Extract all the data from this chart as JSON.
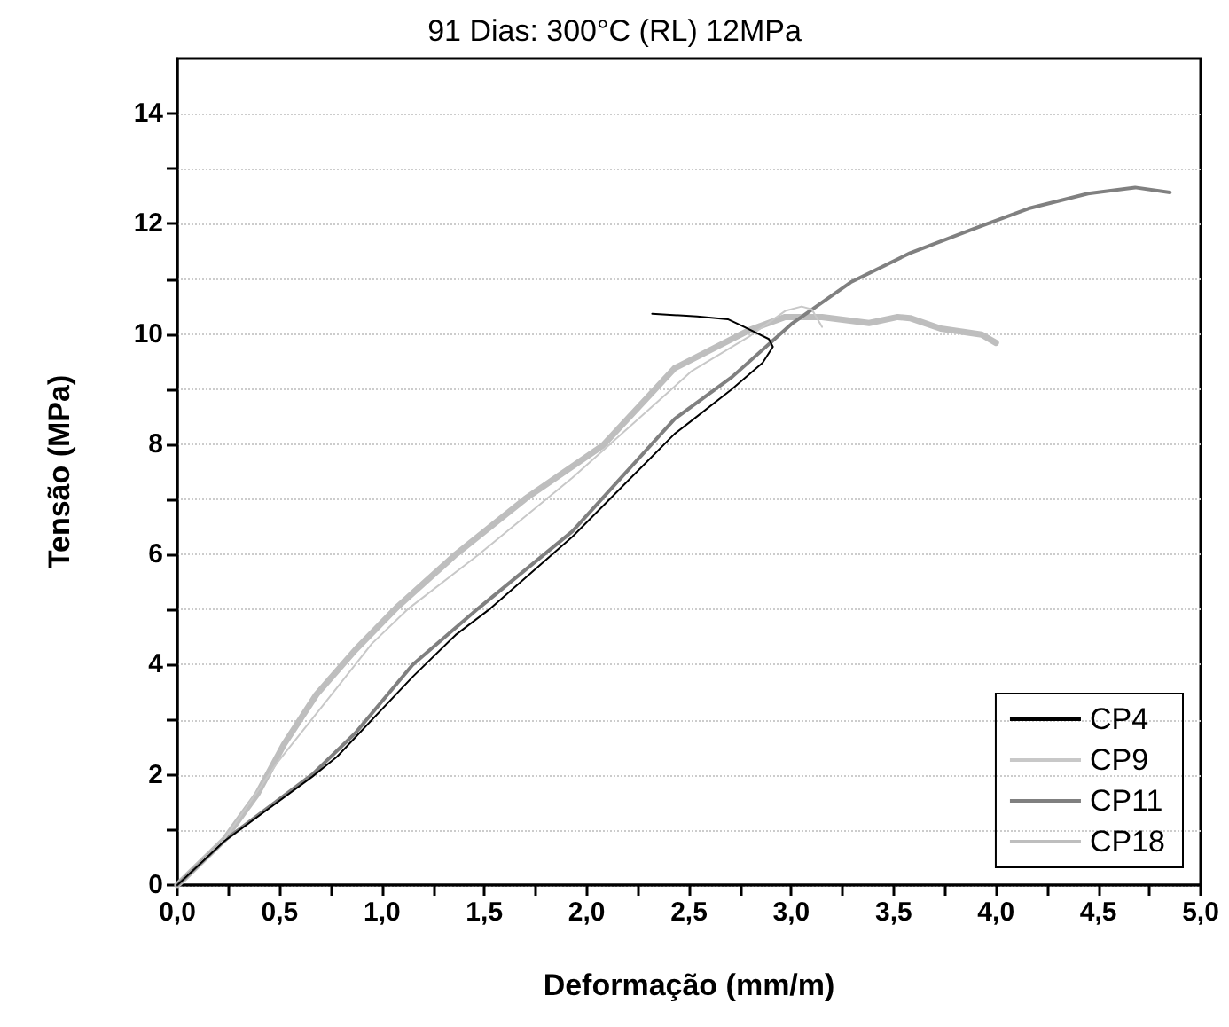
{
  "chart_data": {
    "type": "line",
    "title": "91 Dias: 300°C (RL) 12MPa",
    "xlabel": "Deformação (mm/m)",
    "ylabel": "Tensão (MPa)",
    "xlim": [
      0,
      5
    ],
    "ylim": [
      0,
      15
    ],
    "xticks": [
      {
        "value": 0,
        "label": "0,0"
      },
      {
        "value": 0.25,
        "label": null
      },
      {
        "value": 0.5,
        "label": "0,5"
      },
      {
        "value": 0.75,
        "label": null
      },
      {
        "value": 1,
        "label": "1,0"
      },
      {
        "value": 1.25,
        "label": null
      },
      {
        "value": 1.5,
        "label": "1,5"
      },
      {
        "value": 1.75,
        "label": null
      },
      {
        "value": 2,
        "label": "2,0"
      },
      {
        "value": 2.25,
        "label": null
      },
      {
        "value": 2.5,
        "label": "2,5"
      },
      {
        "value": 2.75,
        "label": null
      },
      {
        "value": 3,
        "label": "3,0"
      },
      {
        "value": 3.25,
        "label": null
      },
      {
        "value": 3.5,
        "label": "3,5"
      },
      {
        "value": 3.75,
        "label": null
      },
      {
        "value": 4,
        "label": "4,0"
      },
      {
        "value": 4.25,
        "label": null
      },
      {
        "value": 4.5,
        "label": "4,5"
      },
      {
        "value": 4.75,
        "label": null
      },
      {
        "value": 5,
        "label": "5,0"
      }
    ],
    "yticks": [
      0,
      {
        "value": 1,
        "label": null
      },
      2,
      {
        "value": 3,
        "label": null
      },
      4,
      {
        "value": 5,
        "label": null
      },
      6,
      {
        "value": 7,
        "label": null
      },
      8,
      {
        "value": 9,
        "label": null
      },
      10,
      {
        "value": 11,
        "label": null
      },
      12,
      {
        "value": 13,
        "label": null
      },
      14
    ],
    "grid": "y",
    "legend": "bottom right",
    "marker": "none",
    "line_style": "solid",
    "series": [
      {
        "name": "CP4",
        "color": "#000000",
        "x": [
          0,
          0.23,
          0.66,
          0.78,
          1.15,
          1.36,
          1.53,
          1.93,
          2.43,
          2.51,
          2.71,
          2.86,
          2.91,
          2.89,
          2.77,
          2.69,
          2.54,
          2.32
        ],
        "values": [
          0,
          0.8,
          1.97,
          2.33,
          3.78,
          4.54,
          5.02,
          6.32,
          8.19,
          8.42,
          9.0,
          9.48,
          9.77,
          9.91,
          10.13,
          10.27,
          10.32,
          10.37
        ]
      },
      {
        "name": "CP9",
        "color": "#c8c8c8",
        "x": [
          0,
          0.23,
          0.49,
          0.72,
          0.95,
          1.13,
          1.47,
          1.93,
          2.43,
          2.51,
          2.8,
          2.97,
          3.05,
          3.1,
          3.15
        ],
        "values": [
          0,
          0.83,
          2.23,
          3.3,
          4.38,
          5.02,
          5.99,
          7.39,
          9.05,
          9.32,
          9.97,
          10.42,
          10.5,
          10.45,
          10.13
        ]
      },
      {
        "name": "CP11",
        "color": "#808080",
        "x": [
          0,
          0.23,
          0.66,
          0.87,
          1.15,
          1.47,
          1.93,
          2.43,
          2.71,
          3.0,
          3.29,
          3.58,
          3.87,
          4.16,
          4.45,
          4.68,
          4.85
        ],
        "values": [
          0,
          0.81,
          2.01,
          2.76,
          4.0,
          5.02,
          6.42,
          8.46,
          9.22,
          10.18,
          10.94,
          11.47,
          11.88,
          12.28,
          12.55,
          12.66,
          12.57
        ]
      },
      {
        "name": "CP18",
        "color": "#bebebe",
        "x": [
          0,
          0.23,
          0.39,
          0.52,
          0.68,
          0.87,
          1.07,
          1.36,
          1.7,
          2.08,
          2.43,
          2.8,
          2.97,
          3.15,
          3.38,
          3.52,
          3.58,
          3.73,
          3.93,
          4.0
        ],
        "values": [
          0,
          0.83,
          1.65,
          2.55,
          3.46,
          4.27,
          5.03,
          6.0,
          7.01,
          7.98,
          9.38,
          10.08,
          10.31,
          10.31,
          10.2,
          10.31,
          10.29,
          10.1,
          9.99,
          9.84
        ]
      }
    ]
  }
}
